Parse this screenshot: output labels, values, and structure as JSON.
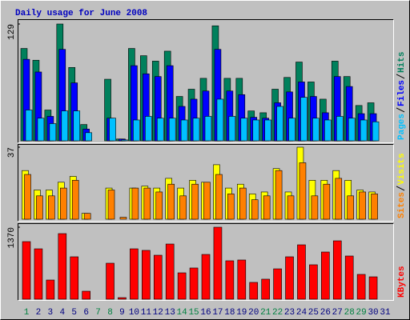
{
  "chart_data": {
    "type": "bar",
    "title": "Daily usage for June 2008",
    "categories": [
      "1",
      "2",
      "3",
      "4",
      "5",
      "6",
      "7",
      "8",
      "9",
      "10",
      "11",
      "12",
      "13",
      "14",
      "15",
      "16",
      "17",
      "18",
      "19",
      "20",
      "21",
      "22",
      "23",
      "24",
      "25",
      "26",
      "27",
      "28",
      "29",
      "30",
      "31"
    ],
    "category_colors": [
      "#008040",
      "#000080",
      "#000080",
      "#000080",
      "#000080",
      "#000080",
      "#008040",
      "#008040",
      "#000080",
      "#000080",
      "#000080",
      "#000080",
      "#000080",
      "#008040",
      "#008040",
      "#000080",
      "#000080",
      "#000080",
      "#000080",
      "#000080",
      "#008040",
      "#008040",
      "#000080",
      "#000080",
      "#000080",
      "#000080",
      "#000080",
      "#008040",
      "#008040",
      "#000080",
      "#000080"
    ],
    "panels": [
      {
        "ylim": [
          0,
          129
        ],
        "yticks": [
          129
        ],
        "series": [
          {
            "name": "Hits",
            "color": "#00805c",
            "values": [
              102,
              89,
              34,
              129,
              81,
              18,
              0,
              68,
              2,
              102,
              94,
              88,
              99,
              49,
              57,
              69,
              127,
              69,
              69,
              33,
              31,
              57,
              70,
              87,
              65,
              46,
              88,
              71,
              39,
              42,
              0
            ]
          },
          {
            "name": "Files",
            "color": "#0000ff",
            "values": [
              90,
              76,
              27,
              101,
              64,
              13,
              0,
              25,
              2,
              83,
              74,
              71,
              83,
              38,
              46,
              55,
              101,
              55,
              51,
              26,
              25,
              42,
              54,
              65,
              49,
              31,
              71,
              60,
              30,
              30,
              0
            ]
          },
          {
            "name": "Pages",
            "color": "#00c0ff",
            "values": [
              34,
              25,
              19,
              33,
              33,
              9,
              0,
              25,
              1,
              23,
              27,
              25,
              25,
              23,
              25,
              27,
              46,
              27,
              25,
              23,
              23,
              38,
              25,
              48,
              25,
              23,
              27,
              25,
              23,
              21,
              0
            ]
          }
        ]
      },
      {
        "ylim": [
          0,
          37
        ],
        "yticks": [
          37
        ],
        "series": [
          {
            "name": "Visits",
            "color": "#ffff00",
            "values": [
              25,
              15,
              15,
              19,
              22,
              3,
              0,
              16,
              0,
              16,
              17,
              16,
              21,
              16,
              20,
              19,
              28,
              16,
              18,
              13,
              14,
              26,
              14,
              37,
              20,
              20,
              25,
              20,
              15,
              14,
              0
            ]
          },
          {
            "name": "Sites",
            "color": "#ff8000",
            "values": [
              23,
              12,
              12,
              16,
              20,
              3,
              0,
              15,
              1,
              16,
              16,
              14,
              18,
              12,
              18,
              19,
              23,
              13,
              16,
              10,
              12,
              25,
              12,
              29,
              12,
              18,
              21,
              12,
              14,
              13,
              0
            ]
          }
        ]
      },
      {
        "ylim": [
          0,
          1370
        ],
        "yticks": [
          1370
        ],
        "series": [
          {
            "name": "KBytes",
            "color": "#ff0000",
            "values": [
              1096,
              959,
              365,
              1248,
              807,
              152,
              0,
              685,
              30,
              959,
              929,
              837,
              1050,
              502,
              594,
              852,
              1370,
              731,
              746,
              320,
              381,
              578,
              807,
              1035,
              655,
              898,
              1111,
              822,
              472,
              426,
              0
            ]
          }
        ]
      }
    ]
  }
}
